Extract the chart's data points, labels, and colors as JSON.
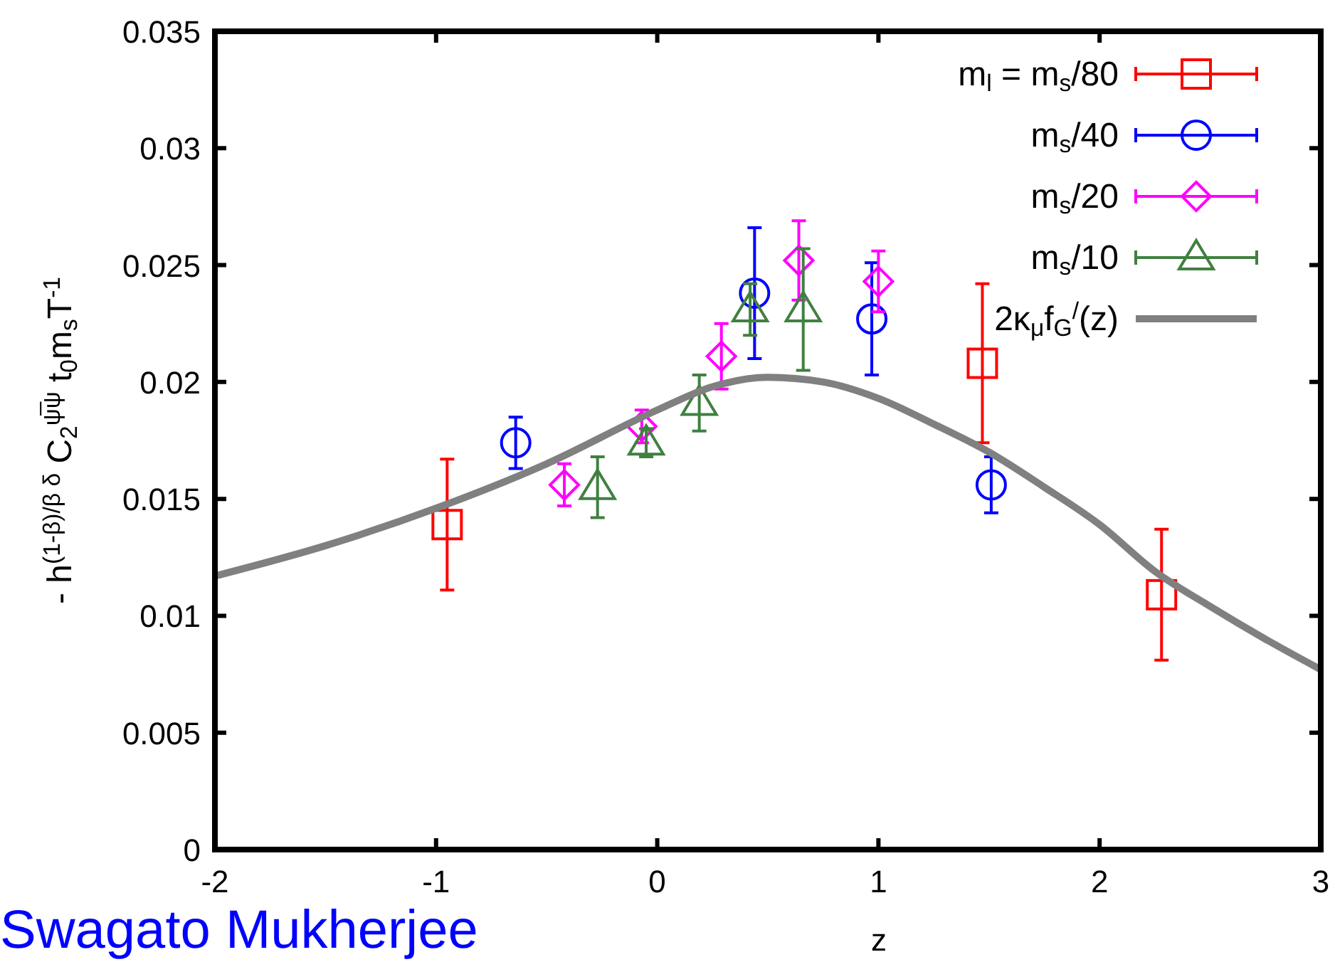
{
  "chart_data": {
    "type": "scatter",
    "xlabel": "z",
    "ylabel": "- h$^{(1-β)/β δ}$ C$_{2}$$^{ψ̅ψ}$  t$_{0}$m$_{s}$T$^{-1}$",
    "xlim": [
      -2,
      3
    ],
    "xticks": [
      -2,
      -1,
      0,
      1,
      2,
      3
    ],
    "ylim": [
      0,
      0.035
    ],
    "yticks": [
      0,
      0.005,
      0.01,
      0.015,
      0.02,
      0.025,
      0.03,
      0.035
    ],
    "legend": "top right",
    "grid": false,
    "annotations": [
      "Swagato Mukherjee"
    ],
    "series": [
      {
        "name": "m$_{l}$ = m$_{s}$/80",
        "color": "#ff0000",
        "marker": "square",
        "x": [
          -0.95,
          1.47,
          2.28
        ],
        "values": [
          0.0139,
          0.0208,
          0.0109
        ],
        "errors": [
          0.0028,
          0.0034,
          0.0028
        ]
      },
      {
        "name": "m$_{s}$/40",
        "color": "#0000ff",
        "marker": "circle",
        "x": [
          -0.64,
          0.44,
          0.97,
          1.51
        ],
        "values": [
          0.0174,
          0.0238,
          0.0227,
          0.0156
        ],
        "errors": [
          0.0011,
          0.0028,
          0.0024,
          0.0012
        ]
      },
      {
        "name": "m$_{s}$/20",
        "color": "#ff00ff",
        "marker": "diamond",
        "x": [
          -0.42,
          -0.07,
          0.29,
          0.64,
          1.0
        ],
        "values": [
          0.0156,
          0.0181,
          0.0211,
          0.0252,
          0.0243
        ],
        "errors": [
          0.0009,
          0.0007,
          0.0014,
          0.0017,
          0.0013
        ]
      },
      {
        "name": "m$_{s}$/10",
        "color": "#408040",
        "marker": "triangle",
        "x": [
          -0.27,
          -0.05,
          0.19,
          0.42,
          0.66
        ],
        "values": [
          0.0155,
          0.0174,
          0.0191,
          0.0231,
          0.0231
        ],
        "errors": [
          0.0013,
          0.0006,
          0.0012,
          0.0011,
          0.0026
        ]
      },
      {
        "name": "2κ$_{μ}$f$_{G}$$^{/}$(z)",
        "type": "line",
        "color": "#808080",
        "marker": "none",
        "x": [
          -2,
          -1.5,
          -1,
          -0.5,
          0,
          0.25,
          0.5,
          0.75,
          1,
          1.25,
          1.5,
          1.75,
          2,
          2.25,
          2.5,
          2.75,
          3
        ],
        "values": [
          0.0117,
          0.013,
          0.0146,
          0.0165,
          0.0188,
          0.0198,
          0.0202,
          0.02,
          0.0193,
          0.0182,
          0.017,
          0.0155,
          0.0139,
          0.0119,
          0.0104,
          0.009,
          0.0077
        ]
      }
    ]
  }
}
